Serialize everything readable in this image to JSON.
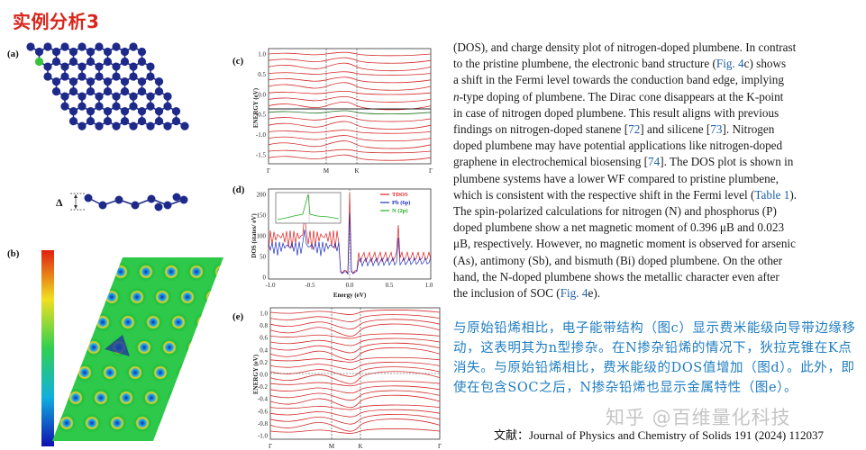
{
  "slide": {
    "title": "实例分析3"
  },
  "panels": {
    "a": "(a)",
    "b": "(b)",
    "c": "(c)",
    "d": "(d)",
    "e": "(e)",
    "delta": "Δ"
  },
  "band_c": {
    "ylabel": "ENERGY (eV)",
    "yticks": [
      "1.0",
      "0.5",
      "0.0",
      "-0.5",
      "-1.0",
      "-1.5"
    ],
    "xticks": [
      "Γ",
      "M",
      "K",
      "Γ"
    ]
  },
  "dos_d": {
    "ylabel": "DOS (states/ eV)",
    "xlabel": "Energy (eV)",
    "yticks": [
      "200",
      "150",
      "100",
      "50",
      "0"
    ],
    "xticks": [
      "-1.0",
      "-0.5",
      "0.0",
      "0.5",
      "1.0"
    ],
    "legend": [
      "TDOS",
      "Pb (6p)",
      "N (2p)"
    ],
    "legend_colors": [
      "#e02020",
      "#2030c0",
      "#20b020"
    ]
  },
  "band_e": {
    "ylabel": "ENERGY (eV)",
    "yticks": [
      "1.0",
      "0.8",
      "0.6",
      "0.4",
      "0.2",
      "0.0",
      "-0.2",
      "-0.4",
      "-0.6",
      "-0.8",
      "-1.0"
    ],
    "xticks": [
      "Γ",
      "M",
      "K",
      "Γ"
    ]
  },
  "paper": {
    "line1": "(DOS), and charge density plot of nitrogen-doped plumbene. In contrast",
    "line2": "to the pristine plumbene, the electronic band structure (",
    "line2_cite": "Fig. 4",
    "line2_end": "c) shows",
    "line3": "a shift in the Fermi level towards the conduction band edge, implying",
    "line4_em": "n",
    "line4": "-type doping of plumbene. The Dirac cone disappears at the K-point",
    "line5": "in case of nitrogen doped plumbene. This result aligns with previous",
    "line6a": "findings on nitrogen-doped stanene [",
    "line6_cite1": "72",
    "line6b": "] and silicene [",
    "line6_cite2": "73",
    "line6c": "]. Nitrogen",
    "line7": "doped plumbene may have potential applications like nitrogen-doped",
    "line8a": "graphene in electrochemical biosensing [",
    "line8_cite": "74",
    "line8b": "]. The DOS plot is shown in",
    "line9": "plumbene systems have a lower WF compared to pristine plumbene,",
    "line10a": "which is consistent with the respective shift in the Fermi level (",
    "line10_cite": "Table 1",
    "line10b": ").",
    "line11": "The spin-polarized calculations for nitrogen (N) and phosphorus (P)",
    "line12": "doped plumbene show a net magnetic moment of 0.396 μB and 0.023",
    "line13": "μB, respectively. However, no magnetic moment is observed for arsenic",
    "line14": "(As), antimony (Sb), and bismuth (Bi) doped plumbene. On the other",
    "line15": "hand, the N-doped plumbene shows the metallic character even after",
    "line16a": "the inclusion of SOC (",
    "line16_cite": "Fig. 4",
    "line16b": "e)."
  },
  "summary": {
    "text": "与原始铅烯相比，电子能带结构（图c）显示费米能级向导带边缘移动，这表明其为n型掺杂。在N掺杂铅烯的情况下，狄拉克锥在K点消失。与原始铅烯相比，费米能级的DOS值增加（图d）。此外，即使在包含SOC之后，N掺杂铅烯也显示金属特性（图e）。"
  },
  "watermark": "知乎 @百维量化科技",
  "reference": "文献：Journal of Physics and Chemistry of Solids 191 (2024) 112037",
  "colors": {
    "title": "#d9261c",
    "atom": "#1e2a8a",
    "dopant": "#39c339",
    "band": "#d42a2a",
    "summary": "#1f7dc1",
    "cite": "#1f5fa8"
  }
}
